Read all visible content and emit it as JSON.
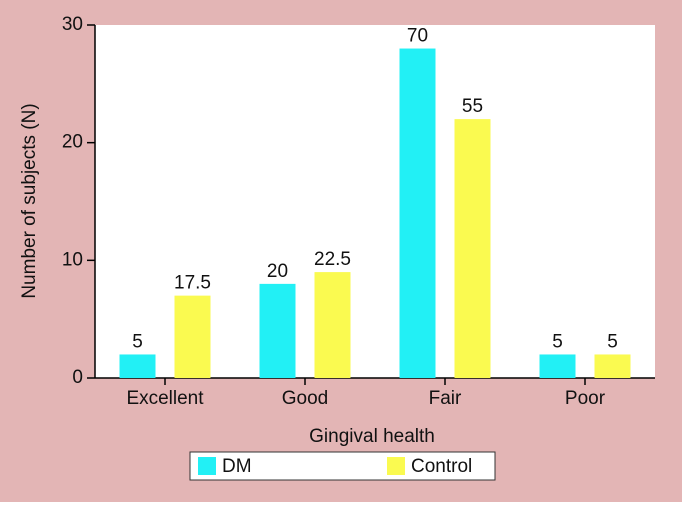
{
  "chart_data": {
    "type": "bar",
    "categories": [
      "Excellent",
      "Good",
      "Fair",
      "Poor"
    ],
    "series": [
      {
        "name": "DM",
        "color": "#22f0f5",
        "values": [
          2,
          8,
          28,
          2
        ],
        "value_labels": [
          "5",
          "20",
          "70",
          "5"
        ]
      },
      {
        "name": "Control",
        "color": "#fafa50",
        "values": [
          7,
          9,
          22,
          2
        ],
        "value_labels": [
          "17.5",
          "22.5",
          "55",
          "5"
        ]
      }
    ],
    "xlabel": "Gingival health",
    "ylabel": "Number of subjects (N)",
    "ylim": [
      0,
      30
    ],
    "yticks": [
      0,
      10,
      20,
      30
    ],
    "background": "#e3b5b5",
    "legend": "bottom"
  }
}
